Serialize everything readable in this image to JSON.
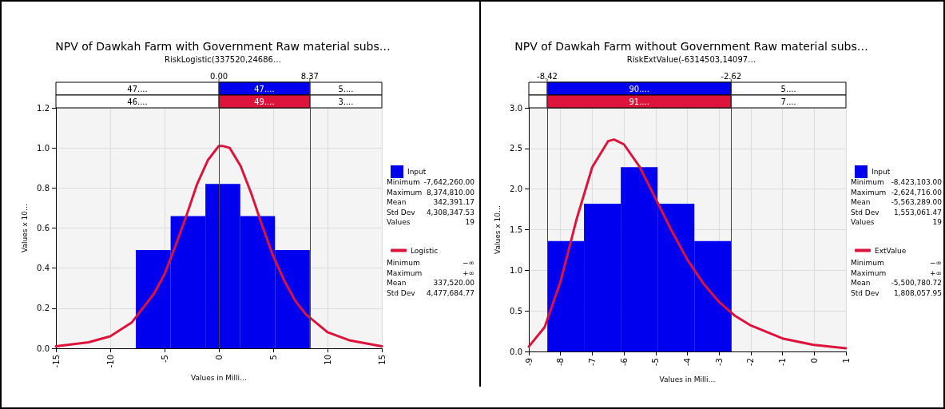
{
  "chart_data": [
    {
      "type": "histogram",
      "title": "NPV of Dawkah Farm with Government Raw material subs…",
      "subtitle": "RiskLogistic(337520,24686…",
      "xlabel": "Values in Milli…",
      "ylabel": "Values x 10…",
      "series": [
        {
          "name": "Input",
          "color": "#0000ee",
          "bins": [
            -7.64,
            -4.44,
            -1.24,
            1.97,
            5.17,
            8.37
          ],
          "values": [
            0.49,
            0.66,
            0.82,
            0.66,
            0.49
          ]
        },
        {
          "name": "Logistic",
          "type": "line",
          "color": "#dc143c",
          "x": [
            -15,
            -12,
            -10,
            -8,
            -6,
            -5,
            -4,
            -3,
            -2,
            -1,
            0,
            0.34,
            1,
            2,
            3,
            4,
            5,
            6,
            7,
            8,
            10,
            12,
            15
          ],
          "values": [
            0.01,
            0.03,
            0.06,
            0.13,
            0.27,
            0.37,
            0.51,
            0.66,
            0.82,
            0.94,
            1.01,
            1.01,
            1.0,
            0.91,
            0.77,
            0.61,
            0.46,
            0.34,
            0.24,
            0.17,
            0.08,
            0.04,
            0.01
          ]
        }
      ],
      "xlim": [
        -15,
        15
      ],
      "xticks": [
        -15,
        -10,
        -5,
        0,
        5,
        10,
        15
      ],
      "ylim": [
        0,
        1.2
      ],
      "yticks": [
        {
          "value": 0,
          "label": "0.0"
        },
        {
          "value": 0.2,
          "label": "0.2"
        },
        {
          "value": 0.4,
          "label": "0.4"
        },
        {
          "value": 0.6,
          "label": "0.6"
        },
        {
          "value": 0.8,
          "label": "0.8"
        },
        {
          "value": 1,
          "label": "1.0"
        },
        {
          "value": 1.2,
          "label": "1.2"
        }
      ],
      "ref_lines": [
        {
          "axis": "x",
          "value": 0,
          "label": "0.00"
        },
        {
          "axis": "x",
          "value": 8.37,
          "label": "8.37"
        }
      ],
      "annotations": [
        "47....",
        "47....",
        "5....",
        "46....",
        "49....",
        "3....",
        "Minimum",
        "-7,642,260.00",
        "Maximum",
        "8,374,810.00",
        "Mean",
        "342,391.17",
        "Std Dev",
        "4,308,347.53",
        "Values",
        "19",
        "Minimum",
        "−∞",
        "Maximum",
        "+∞",
        "Mean",
        "337,520.00",
        "Std Dev",
        "4,477,684.77"
      ],
      "grid": true,
      "legend": "right",
      "line_style": "solid",
      "marker": "none"
    },
    {
      "type": "histogram",
      "title": "NPV of Dawkah Farm without Government Raw material subs…",
      "subtitle": "RiskExtValue(-6314503,14097…",
      "xlabel": "Values in Milli…",
      "ylabel": "Values x 10…",
      "series": [
        {
          "name": "Input",
          "color": "#0000ee",
          "bins": [
            -8.42,
            -7.26,
            -6.1,
            -4.94,
            -3.78,
            -2.62
          ],
          "values": [
            1.36,
            1.82,
            2.27,
            1.82,
            1.36
          ]
        },
        {
          "name": "ExtValue",
          "type": "line",
          "color": "#dc143c",
          "x": [
            -9,
            -8.5,
            -8,
            -7.5,
            -7,
            -6.5,
            -6.31,
            -6,
            -5.5,
            -5,
            -4.5,
            -4,
            -3.5,
            -3,
            -2.5,
            -2,
            -1,
            0,
            1
          ],
          "values": [
            0.06,
            0.3,
            0.86,
            1.62,
            2.27,
            2.59,
            2.61,
            2.55,
            2.27,
            1.88,
            1.49,
            1.13,
            0.84,
            0.61,
            0.44,
            0.32,
            0.16,
            0.08,
            0.04
          ]
        }
      ],
      "xlim": [
        -9,
        1
      ],
      "xticks": [
        -9,
        -8,
        -7,
        -6,
        -5,
        -4,
        -3,
        -2,
        -1,
        0,
        1
      ],
      "ylim": [
        0,
        3
      ],
      "yticks": [
        {
          "value": 0,
          "label": "0.0"
        },
        {
          "value": 0.5,
          "label": "0.5"
        },
        {
          "value": 1,
          "label": "1.0"
        },
        {
          "value": 1.5,
          "label": "1.5"
        },
        {
          "value": 2,
          "label": "2.0"
        },
        {
          "value": 2.5,
          "label": "2.5"
        },
        {
          "value": 3,
          "label": "3.0"
        }
      ],
      "ref_lines": [
        {
          "axis": "x",
          "value": -8.42,
          "label": "-8.42"
        },
        {
          "axis": "x",
          "value": -2.62,
          "label": "-2.62"
        }
      ],
      "annotations": [
        "90....",
        "5....",
        "91....",
        "7....",
        "Minimum",
        "-8,423,103.00",
        "Maximum",
        "-2,624,716.00",
        "Mean",
        "-5,563,289.00",
        "Std Dev",
        "1,553,061.47",
        "Values",
        "19",
        "Minimum",
        "−∞",
        "Maximum",
        "+∞",
        "Mean",
        "-5,500,780.72",
        "Std Dev",
        "1,808,057.95"
      ],
      "grid": true,
      "legend": "right",
      "line_style": "solid",
      "marker": "none"
    }
  ]
}
